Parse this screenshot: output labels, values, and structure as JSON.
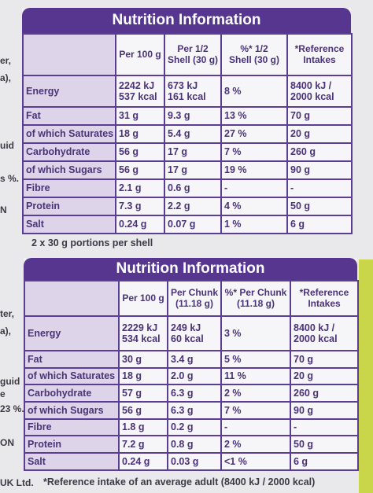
{
  "edge_text": [
    "er,",
    "a),",
    "uid",
    "s %.",
    "N",
    "ter,",
    "a),",
    "guid",
    "e",
    "23 %.",
    "ON",
    "UK Ltd."
  ],
  "panels": [
    {
      "title": "Nutrition Information",
      "columns": [
        [
          "Per 100 g"
        ],
        [
          "Per 1/2",
          "Shell (30 g)"
        ],
        [
          "%* 1/2",
          "Shell (30 g)"
        ],
        [
          "*Reference",
          "Intakes"
        ]
      ],
      "rows": [
        [
          "Energy",
          [
            "2242 kJ",
            "537 kcal"
          ],
          [
            "673 kJ",
            "161 kcal"
          ],
          "8 %",
          [
            "8400 kJ /",
            "2000 kcal"
          ]
        ],
        [
          "Fat",
          "31 g",
          "9.3 g",
          "13 %",
          "70 g"
        ],
        [
          "of which Saturates",
          "18 g",
          "5.4 g",
          "27 %",
          "20 g"
        ],
        [
          "Carbohydrate",
          "56 g",
          "17 g",
          "7 %",
          "260 g"
        ],
        [
          "of which Sugars",
          "56 g",
          "17 g",
          "19 %",
          "90 g"
        ],
        [
          "Fibre",
          "2.1 g",
          "0.6 g",
          "-",
          "-"
        ],
        [
          "Protein",
          "7.3 g",
          "2.2 g",
          "4 %",
          "50 g"
        ],
        [
          "Salt",
          "0.24 g",
          "0.07 g",
          "1 %",
          "6 g"
        ]
      ],
      "footnote": "2 x 30 g portions per shell"
    },
    {
      "title": "Nutrition Information",
      "columns": [
        [
          "Per 100 g"
        ],
        [
          "Per Chunk",
          "(11.18 g)"
        ],
        [
          "%* Per Chunk",
          "(11.18 g)"
        ],
        [
          "*Reference",
          "Intakes"
        ]
      ],
      "rows": [
        [
          "Energy",
          [
            "2229 kJ",
            "534 kcal"
          ],
          [
            "249 kJ",
            "60 kcal"
          ],
          "3 %",
          [
            "8400 kJ /",
            "2000 kcal"
          ]
        ],
        [
          "Fat",
          "30 g",
          "3.4 g",
          "5 %",
          "70 g"
        ],
        [
          "of which Saturates",
          "18 g",
          "2.0 g",
          "11 %",
          "20 g"
        ],
        [
          "Carbohydrate",
          "57 g",
          "6.3 g",
          "2 %",
          "260 g"
        ],
        [
          "of which Sugars",
          "56 g",
          "6.3 g",
          "7 %",
          "90 g"
        ],
        [
          "Fibre",
          "1.8 g",
          "0.2 g",
          "-",
          "-"
        ],
        [
          "Protein",
          "7.2 g",
          "0.8 g",
          "2 %",
          "50 g"
        ],
        [
          "Salt",
          "0.24 g",
          "0.03 g",
          "<1 %",
          "6 g"
        ]
      ],
      "footnote": "*Reference intake of an average adult (8400 kJ / 2000 kcal)"
    }
  ]
}
